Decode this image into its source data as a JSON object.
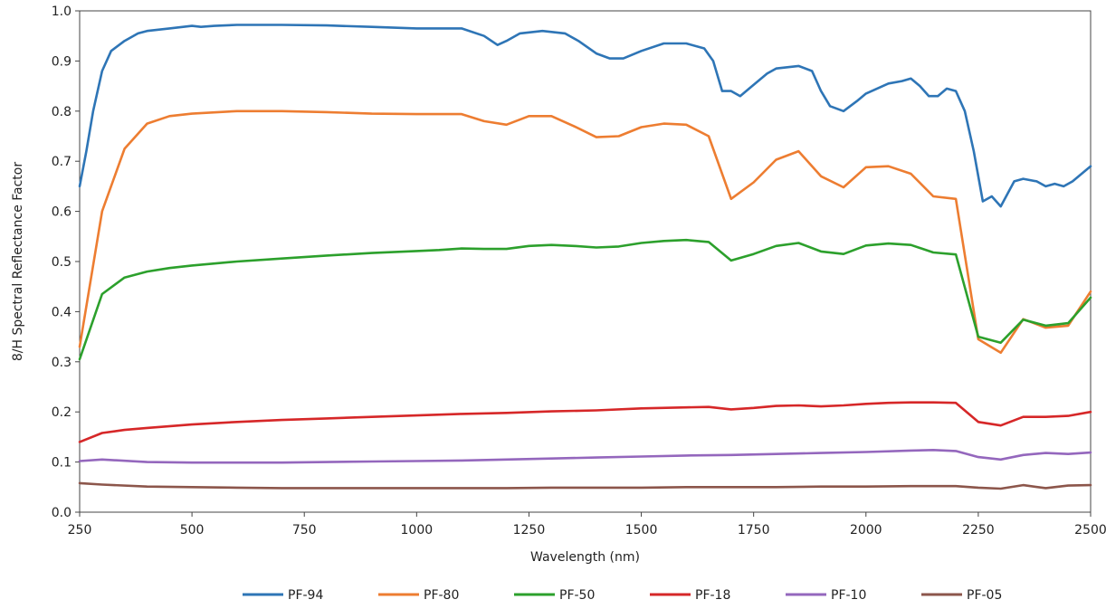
{
  "chart_data": {
    "type": "line",
    "title": "",
    "xlabel": "Wavelength (nm)",
    "ylabel": "8/H Spectral Reflectance Factor",
    "xlim": [
      250,
      2500
    ],
    "ylim": [
      0,
      1.0
    ],
    "x_ticks": [
      250,
      500,
      750,
      1000,
      1250,
      1500,
      1750,
      2000,
      2250,
      2500
    ],
    "x_tick_labels": [
      "250",
      "500",
      "750",
      "1000",
      "1250",
      "1500",
      "1750",
      "2000",
      "2250",
      "2500"
    ],
    "y_ticks": [
      0,
      0.1,
      0.2,
      0.3,
      0.4,
      0.5,
      0.6,
      0.7,
      0.8,
      0.9,
      1.0
    ],
    "y_tick_labels": [
      "0.0",
      "0.1",
      "0.2",
      "0.3",
      "0.4",
      "0.5",
      "0.6",
      "0.7",
      "0.8",
      "0.9",
      "1.0"
    ],
    "grid": false,
    "legend_position": "bottom",
    "series": [
      {
        "name": "PF-94",
        "color": "#2e75b6",
        "x": [
          250,
          265,
          280,
          300,
          320,
          350,
          380,
          400,
          450,
          500,
          520,
          550,
          600,
          700,
          800,
          900,
          1000,
          1100,
          1150,
          1180,
          1200,
          1230,
          1280,
          1330,
          1360,
          1400,
          1430,
          1460,
          1500,
          1550,
          1600,
          1640,
          1660,
          1680,
          1700,
          1720,
          1740,
          1780,
          1800,
          1850,
          1880,
          1900,
          1920,
          1950,
          1980,
          2000,
          2050,
          2080,
          2100,
          2120,
          2140,
          2160,
          2180,
          2200,
          2220,
          2240,
          2260,
          2280,
          2300,
          2330,
          2350,
          2380,
          2400,
          2420,
          2440,
          2460,
          2480,
          2500
        ],
        "y": [
          0.65,
          0.72,
          0.8,
          0.88,
          0.92,
          0.94,
          0.955,
          0.96,
          0.965,
          0.97,
          0.968,
          0.97,
          0.972,
          0.972,
          0.971,
          0.968,
          0.965,
          0.965,
          0.95,
          0.932,
          0.94,
          0.955,
          0.96,
          0.955,
          0.94,
          0.915,
          0.905,
          0.905,
          0.92,
          0.935,
          0.935,
          0.925,
          0.9,
          0.84,
          0.84,
          0.83,
          0.845,
          0.875,
          0.885,
          0.89,
          0.88,
          0.84,
          0.81,
          0.8,
          0.82,
          0.835,
          0.855,
          0.86,
          0.865,
          0.85,
          0.83,
          0.83,
          0.845,
          0.84,
          0.8,
          0.72,
          0.62,
          0.63,
          0.61,
          0.66,
          0.665,
          0.66,
          0.65,
          0.655,
          0.65,
          0.66,
          0.675,
          0.69
        ]
      },
      {
        "name": "PF-80",
        "color": "#ed7d31",
        "x": [
          250,
          300,
          350,
          400,
          450,
          500,
          600,
          700,
          800,
          900,
          1000,
          1050,
          1100,
          1150,
          1200,
          1250,
          1300,
          1350,
          1400,
          1450,
          1500,
          1550,
          1600,
          1650,
          1700,
          1750,
          1800,
          1850,
          1900,
          1950,
          2000,
          2050,
          2100,
          2150,
          2200,
          2250,
          2300,
          2350,
          2400,
          2450,
          2500
        ],
        "y": [
          0.33,
          0.6,
          0.725,
          0.775,
          0.79,
          0.795,
          0.8,
          0.8,
          0.798,
          0.795,
          0.794,
          0.794,
          0.794,
          0.78,
          0.773,
          0.79,
          0.79,
          0.77,
          0.748,
          0.75,
          0.768,
          0.775,
          0.773,
          0.75,
          0.625,
          0.658,
          0.703,
          0.72,
          0.67,
          0.648,
          0.688,
          0.69,
          0.675,
          0.63,
          0.625,
          0.345,
          0.318,
          0.385,
          0.368,
          0.372,
          0.44
        ]
      },
      {
        "name": "PF-50",
        "color": "#2ca02c",
        "x": [
          250,
          300,
          350,
          400,
          450,
          500,
          600,
          700,
          800,
          900,
          1000,
          1050,
          1100,
          1150,
          1200,
          1250,
          1300,
          1350,
          1400,
          1450,
          1500,
          1550,
          1600,
          1650,
          1700,
          1750,
          1800,
          1850,
          1900,
          1950,
          2000,
          2050,
          2100,
          2150,
          2200,
          2250,
          2300,
          2350,
          2400,
          2450,
          2500
        ],
        "y": [
          0.305,
          0.435,
          0.468,
          0.48,
          0.487,
          0.492,
          0.5,
          0.506,
          0.512,
          0.517,
          0.521,
          0.523,
          0.526,
          0.525,
          0.525,
          0.531,
          0.533,
          0.531,
          0.528,
          0.53,
          0.537,
          0.541,
          0.543,
          0.539,
          0.502,
          0.515,
          0.531,
          0.537,
          0.52,
          0.515,
          0.532,
          0.536,
          0.533,
          0.518,
          0.514,
          0.35,
          0.338,
          0.384,
          0.372,
          0.377,
          0.428
        ]
      },
      {
        "name": "PF-18",
        "color": "#d62728",
        "x": [
          250,
          300,
          350,
          400,
          500,
          600,
          700,
          800,
          900,
          1000,
          1100,
          1200,
          1300,
          1400,
          1500,
          1600,
          1650,
          1700,
          1750,
          1800,
          1850,
          1900,
          1950,
          2000,
          2050,
          2100,
          2150,
          2200,
          2250,
          2300,
          2350,
          2400,
          2450,
          2500
        ],
        "y": [
          0.14,
          0.158,
          0.164,
          0.168,
          0.175,
          0.18,
          0.184,
          0.187,
          0.19,
          0.193,
          0.196,
          0.198,
          0.201,
          0.203,
          0.207,
          0.209,
          0.21,
          0.205,
          0.208,
          0.212,
          0.213,
          0.211,
          0.213,
          0.216,
          0.218,
          0.219,
          0.219,
          0.218,
          0.18,
          0.173,
          0.19,
          0.19,
          0.192,
          0.2
        ]
      },
      {
        "name": "PF-10",
        "color": "#9467bd",
        "x": [
          250,
          300,
          400,
          500,
          600,
          700,
          800,
          900,
          1000,
          1100,
          1200,
          1300,
          1400,
          1500,
          1600,
          1700,
          1800,
          1900,
          2000,
          2100,
          2150,
          2200,
          2250,
          2300,
          2350,
          2400,
          2450,
          2500
        ],
        "y": [
          0.102,
          0.105,
          0.1,
          0.099,
          0.099,
          0.099,
          0.1,
          0.101,
          0.102,
          0.103,
          0.105,
          0.107,
          0.109,
          0.111,
          0.113,
          0.114,
          0.116,
          0.118,
          0.12,
          0.123,
          0.124,
          0.122,
          0.11,
          0.105,
          0.114,
          0.118,
          0.116,
          0.119
        ]
      },
      {
        "name": "PF-05",
        "color": "#8c564b",
        "x": [
          250,
          300,
          400,
          500,
          600,
          700,
          800,
          900,
          1000,
          1100,
          1200,
          1300,
          1400,
          1500,
          1600,
          1700,
          1800,
          1900,
          2000,
          2100,
          2200,
          2250,
          2300,
          2350,
          2400,
          2450,
          2500
        ],
        "y": [
          0.058,
          0.055,
          0.051,
          0.05,
          0.049,
          0.048,
          0.048,
          0.048,
          0.048,
          0.048,
          0.048,
          0.049,
          0.049,
          0.049,
          0.05,
          0.05,
          0.05,
          0.051,
          0.051,
          0.052,
          0.052,
          0.049,
          0.047,
          0.054,
          0.048,
          0.053,
          0.054
        ]
      }
    ]
  }
}
